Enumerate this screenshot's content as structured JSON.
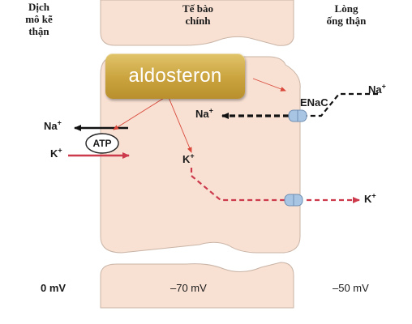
{
  "labels": {
    "left_region": [
      "Dịch",
      "mô kẽ",
      "thận"
    ],
    "center_region": [
      "Tế bào",
      "chính"
    ],
    "right_region": [
      "Lòng",
      "ống thận"
    ]
  },
  "channel_label": "ENaC",
  "pump_label": "ATP",
  "hormone": "aldosteron",
  "ions": {
    "na_lumen": {
      "symbol": "Na",
      "charge": "+"
    },
    "na_cell": {
      "symbol": "Na",
      "charge": "+"
    },
    "na_interstitium": {
      "symbol": "Na",
      "charge": "+"
    },
    "k_interstitium": {
      "symbol": "K",
      "charge": "+"
    },
    "k_cell": {
      "symbol": "K",
      "charge": "+"
    },
    "k_lumen": {
      "symbol": "K",
      "charge": "+"
    }
  },
  "potentials": {
    "interstitium": "0 mV",
    "cell": "–70 mV",
    "lumen": "–50 mV"
  },
  "colors": {
    "cell_fill": "#f8e1d3",
    "cell_outline": "#c9b4a6",
    "potassium": "#cc3a4c",
    "sodium": "#111111",
    "channel": "#a8c5e4",
    "hormone_arrow": "#d9483a"
  }
}
